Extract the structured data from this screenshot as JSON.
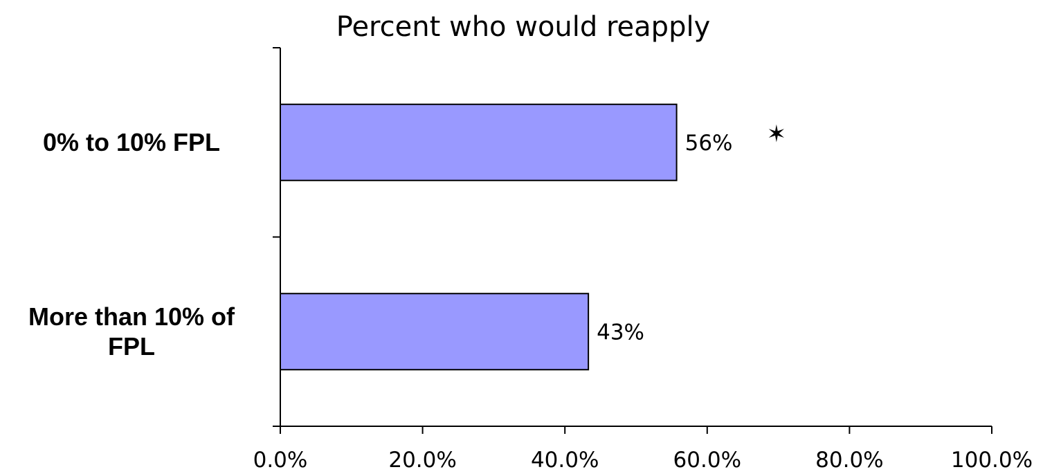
{
  "chart_data": {
    "type": "bar",
    "orientation": "horizontal",
    "title": "Percent who would reapply",
    "xlabel": "",
    "ylabel": "",
    "categories": [
      "0% to 10% FPL",
      "More than 10% of\nFPL"
    ],
    "values": [
      0.557,
      0.433
    ],
    "data_labels": [
      "56%",
      "43%"
    ],
    "markers": [
      "✶",
      ""
    ],
    "xlim": [
      0,
      1
    ],
    "x_ticks": [
      0,
      0.2,
      0.4,
      0.6,
      0.8,
      1.0
    ],
    "x_tick_labels": [
      "0.0%",
      "20.0%",
      "40.0%",
      "60.0%",
      "80.0%",
      "100.0%"
    ],
    "grid": false,
    "legend": "none",
    "colors": {
      "bar_fill": "#9999ff",
      "bar_stroke": "#000000",
      "axis": "#000000"
    }
  }
}
